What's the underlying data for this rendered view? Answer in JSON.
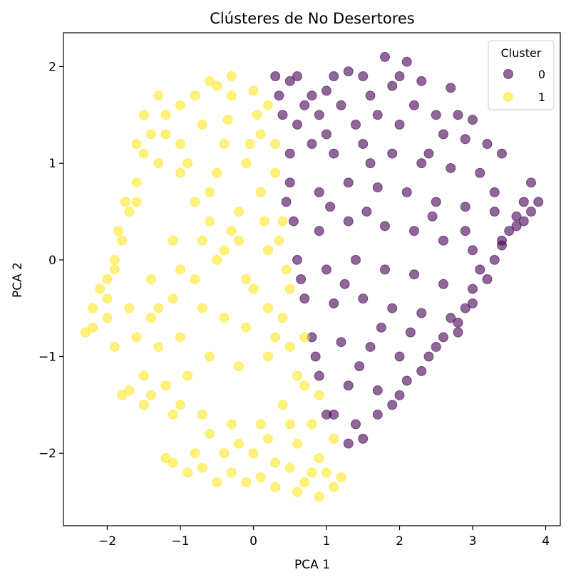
{
  "chart_data": {
    "type": "scatter",
    "title": "Clústeres de No Desertores",
    "xlabel": "PCA 1",
    "ylabel": "PCA 2",
    "xlim": [
      -2.6,
      4.2
    ],
    "ylim": [
      -2.75,
      2.35
    ],
    "xticks": [
      -2,
      -1,
      0,
      1,
      2,
      3,
      4
    ],
    "yticks": [
      -2,
      -1,
      0,
      1,
      2
    ],
    "xtick_labels": [
      "−2",
      "−1",
      "0",
      "1",
      "2",
      "3",
      "4"
    ],
    "ytick_labels": [
      "−2",
      "−1",
      "0",
      "1",
      "2"
    ],
    "grid": false,
    "legend": {
      "title": "Cluster",
      "placement": "top-right"
    },
    "series": [
      {
        "name": "0",
        "color": "#440154",
        "alpha": 0.6,
        "points": [
          [
            0.3,
            1.9
          ],
          [
            0.5,
            1.85
          ],
          [
            0.8,
            1.7
          ],
          [
            1.0,
            1.75
          ],
          [
            1.1,
            1.9
          ],
          [
            1.3,
            1.95
          ],
          [
            1.5,
            1.9
          ],
          [
            1.8,
            2.1
          ],
          [
            2.1,
            2.05
          ],
          [
            1.9,
            1.8
          ],
          [
            2.3,
            1.85
          ],
          [
            2.7,
            1.78
          ],
          [
            2.2,
            1.6
          ],
          [
            2.8,
            1.5
          ],
          [
            3.0,
            1.45
          ],
          [
            2.9,
            1.25
          ],
          [
            3.2,
            1.2
          ],
          [
            3.4,
            1.1
          ],
          [
            2.6,
            1.3
          ],
          [
            2.4,
            1.1
          ],
          [
            0.4,
            1.5
          ],
          [
            0.6,
            1.4
          ],
          [
            0.9,
            1.5
          ],
          [
            1.2,
            1.6
          ],
          [
            1.4,
            1.4
          ],
          [
            1.7,
            1.5
          ],
          [
            2.0,
            1.4
          ],
          [
            0.5,
            1.1
          ],
          [
            0.8,
            1.2
          ],
          [
            1.1,
            1.1
          ],
          [
            1.5,
            1.2
          ],
          [
            1.9,
            1.1
          ],
          [
            2.3,
            1.0
          ],
          [
            2.7,
            0.95
          ],
          [
            3.1,
            0.9
          ],
          [
            0.5,
            0.8
          ],
          [
            0.9,
            0.7
          ],
          [
            1.3,
            0.8
          ],
          [
            1.7,
            0.75
          ],
          [
            2.1,
            0.7
          ],
          [
            2.5,
            0.6
          ],
          [
            2.9,
            0.55
          ],
          [
            3.3,
            0.5
          ],
          [
            3.7,
            0.6
          ],
          [
            3.9,
            0.6
          ],
          [
            0.55,
            0.4
          ],
          [
            0.9,
            0.3
          ],
          [
            1.3,
            0.4
          ],
          [
            1.8,
            0.35
          ],
          [
            2.2,
            0.3
          ],
          [
            2.6,
            0.2
          ],
          [
            3.0,
            0.1
          ],
          [
            3.4,
            0.2
          ],
          [
            3.7,
            0.4
          ],
          [
            3.8,
            0.8
          ],
          [
            0.6,
            0.0
          ],
          [
            1.0,
            -0.1
          ],
          [
            1.4,
            0.0
          ],
          [
            1.8,
            -0.1
          ],
          [
            2.2,
            -0.15
          ],
          [
            2.6,
            -0.25
          ],
          [
            3.0,
            -0.3
          ],
          [
            3.3,
            0.0
          ],
          [
            3.6,
            0.35
          ],
          [
            0.7,
            -0.4
          ],
          [
            1.1,
            -0.45
          ],
          [
            1.5,
            -0.4
          ],
          [
            1.9,
            -0.5
          ],
          [
            2.3,
            -0.55
          ],
          [
            2.7,
            -0.6
          ],
          [
            3.0,
            -0.45
          ],
          [
            2.5,
            -0.9
          ],
          [
            2.8,
            -0.75
          ],
          [
            0.8,
            -0.8
          ],
          [
            1.2,
            -0.85
          ],
          [
            1.6,
            -0.9
          ],
          [
            2.0,
            -1.0
          ],
          [
            2.3,
            -1.15
          ],
          [
            0.9,
            -1.2
          ],
          [
            1.3,
            -1.3
          ],
          [
            1.7,
            -1.35
          ],
          [
            2.0,
            -1.4
          ],
          [
            1.0,
            -1.6
          ],
          [
            1.4,
            -1.7
          ],
          [
            1.7,
            -1.6
          ],
          [
            1.3,
            -1.9
          ],
          [
            1.5,
            -1.85
          ],
          [
            1.1,
            -1.6
          ],
          [
            3.5,
            0.3
          ],
          [
            3.2,
            -0.2
          ],
          [
            2.9,
            -0.5
          ],
          [
            2.6,
            -0.8
          ],
          [
            3.6,
            0.45
          ],
          [
            3.8,
            0.5
          ],
          [
            2.4,
            -1.0
          ],
          [
            2.1,
            -1.25
          ],
          [
            1.9,
            -1.5
          ],
          [
            3.1,
            -0.1
          ],
          [
            3.4,
            0.15
          ],
          [
            2.8,
            -0.65
          ],
          [
            0.35,
            1.7
          ],
          [
            0.7,
            1.6
          ],
          [
            1.6,
            1.7
          ],
          [
            2.5,
            1.5
          ],
          [
            0.45,
            0.6
          ],
          [
            1.05,
            0.55
          ],
          [
            1.55,
            0.5
          ],
          [
            2.45,
            0.45
          ],
          [
            0.65,
            -0.2
          ],
          [
            1.25,
            -0.25
          ],
          [
            1.75,
            -0.7
          ],
          [
            2.15,
            -0.75
          ],
          [
            0.85,
            -1.0
          ],
          [
            1.45,
            -1.1
          ],
          [
            2.9,
            0.3
          ],
          [
            3.3,
            0.7
          ],
          [
            0.6,
            1.9
          ],
          [
            1.0,
            1.3
          ],
          [
            2.0,
            1.9
          ],
          [
            1.6,
            1.0
          ]
        ]
      },
      {
        "name": "1",
        "color": "#fde725",
        "alpha": 0.6,
        "points": [
          [
            -2.2,
            -0.7
          ],
          [
            -2.0,
            -0.6
          ],
          [
            -2.1,
            -0.3
          ],
          [
            -1.9,
            -0.1
          ],
          [
            -1.8,
            0.2
          ],
          [
            -1.7,
            0.5
          ],
          [
            -1.6,
            0.8
          ],
          [
            -1.5,
            1.1
          ],
          [
            -1.4,
            1.3
          ],
          [
            -1.2,
            1.5
          ],
          [
            -1.0,
            1.6
          ],
          [
            -0.8,
            1.7
          ],
          [
            -0.5,
            1.8
          ],
          [
            -0.3,
            1.7
          ],
          [
            0.0,
            1.75
          ],
          [
            0.2,
            1.6
          ],
          [
            0.1,
            1.3
          ],
          [
            -0.1,
            1.0
          ],
          [
            -0.4,
            1.2
          ],
          [
            -0.7,
            1.4
          ],
          [
            -1.0,
            1.2
          ],
          [
            -1.3,
            1.0
          ],
          [
            -1.6,
            0.6
          ],
          [
            -1.9,
            0.0
          ],
          [
            -2.0,
            -0.4
          ],
          [
            -1.7,
            -0.5
          ],
          [
            -1.4,
            -0.2
          ],
          [
            -1.1,
            0.2
          ],
          [
            -0.8,
            0.6
          ],
          [
            -0.5,
            0.9
          ],
          [
            -0.2,
            0.5
          ],
          [
            0.1,
            0.7
          ],
          [
            0.3,
            0.9
          ],
          [
            0.4,
            0.4
          ],
          [
            0.2,
            0.1
          ],
          [
            -0.1,
            -0.2
          ],
          [
            -0.4,
            0.1
          ],
          [
            -0.7,
            0.2
          ],
          [
            -1.0,
            -0.1
          ],
          [
            -1.3,
            -0.5
          ],
          [
            -1.6,
            -0.8
          ],
          [
            -1.3,
            -0.9
          ],
          [
            -1.0,
            -0.8
          ],
          [
            -0.7,
            -0.5
          ],
          [
            -0.4,
            -0.6
          ],
          [
            -0.1,
            -0.7
          ],
          [
            0.2,
            -0.5
          ],
          [
            0.5,
            -0.3
          ],
          [
            0.5,
            -0.9
          ],
          [
            0.2,
            -1.0
          ],
          [
            -0.2,
            -1.1
          ],
          [
            -0.6,
            -1.0
          ],
          [
            -0.9,
            -1.2
          ],
          [
            -1.2,
            -1.3
          ],
          [
            -1.5,
            -1.2
          ],
          [
            -1.8,
            -1.4
          ],
          [
            -1.5,
            -1.5
          ],
          [
            -1.1,
            -1.6
          ],
          [
            -0.7,
            -1.6
          ],
          [
            -0.3,
            -1.7
          ],
          [
            0.1,
            -1.7
          ],
          [
            0.4,
            -1.5
          ],
          [
            0.7,
            -1.3
          ],
          [
            0.8,
            -1.7
          ],
          [
            0.6,
            -1.9
          ],
          [
            0.3,
            -2.1
          ],
          [
            0.0,
            -2.0
          ],
          [
            -0.4,
            -2.0
          ],
          [
            -0.8,
            -2.0
          ],
          [
            -1.1,
            -2.1
          ],
          [
            -0.9,
            -2.2
          ],
          [
            -0.5,
            -2.3
          ],
          [
            -0.1,
            -2.3
          ],
          [
            0.3,
            -2.35
          ],
          [
            0.6,
            -2.4
          ],
          [
            0.9,
            -2.45
          ],
          [
            1.1,
            -2.35
          ],
          [
            1.2,
            -2.25
          ],
          [
            0.8,
            -2.2
          ],
          [
            0.5,
            -2.15
          ],
          [
            0.9,
            -2.05
          ],
          [
            1.1,
            -1.85
          ],
          [
            0.9,
            -1.4
          ],
          [
            0.6,
            -1.2
          ],
          [
            0.3,
            -0.8
          ],
          [
            0.0,
            -0.3
          ],
          [
            -0.3,
            0.3
          ],
          [
            -0.6,
            0.7
          ],
          [
            -0.9,
            1.0
          ],
          [
            -1.2,
            1.3
          ],
          [
            -1.5,
            1.5
          ],
          [
            -1.3,
            1.7
          ],
          [
            -0.6,
            1.85
          ],
          [
            -0.3,
            1.9
          ],
          [
            -2.3,
            -0.75
          ],
          [
            -2.2,
            -0.5
          ],
          [
            -2.0,
            -0.2
          ],
          [
            -1.85,
            0.3
          ],
          [
            -1.75,
            0.6
          ],
          [
            -1.9,
            -0.9
          ],
          [
            -1.4,
            -0.6
          ],
          [
            -1.1,
            -0.4
          ],
          [
            -0.8,
            -0.2
          ],
          [
            -0.5,
            0.0
          ],
          [
            -0.2,
            0.2
          ],
          [
            0.15,
            0.4
          ],
          [
            0.35,
            0.2
          ],
          [
            0.45,
            -0.1
          ],
          [
            0.4,
            -0.6
          ],
          [
            0.7,
            -0.8
          ],
          [
            -1.7,
            -1.35
          ],
          [
            -1.4,
            -1.4
          ],
          [
            -1.0,
            -1.5
          ],
          [
            -0.6,
            -1.8
          ],
          [
            -0.2,
            -1.9
          ],
          [
            0.2,
            -1.85
          ],
          [
            0.5,
            -1.7
          ],
          [
            -1.2,
            -2.05
          ],
          [
            -0.7,
            -2.15
          ],
          [
            -0.3,
            -2.2
          ],
          [
            0.1,
            -2.25
          ],
          [
            0.7,
            -2.3
          ],
          [
            1.0,
            -2.2
          ],
          [
            -0.35,
            1.45
          ],
          [
            0.05,
            1.5
          ],
          [
            -1.6,
            1.2
          ],
          [
            -1.0,
            0.9
          ],
          [
            -0.6,
            0.4
          ],
          [
            0.3,
            1.2
          ],
          [
            -0.05,
            1.2
          ]
        ]
      }
    ]
  }
}
